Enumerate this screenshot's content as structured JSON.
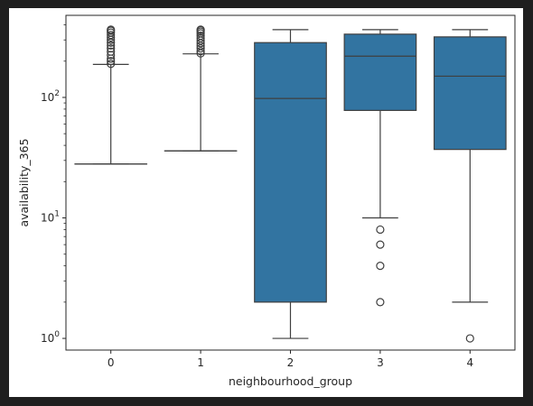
{
  "chart_data": {
    "type": "box",
    "title": "",
    "xlabel": "neighbourhood_group",
    "ylabel": "availability_365",
    "yscale": "log",
    "ylim": [
      0.8,
      480
    ],
    "yticks": [
      {
        "value": 1,
        "base": "10",
        "exp": "0"
      },
      {
        "value": 10,
        "base": "10",
        "exp": "1"
      },
      {
        "value": 100,
        "base": "10",
        "exp": "2"
      }
    ],
    "categories": [
      "0",
      "1",
      "2",
      "3",
      "4"
    ],
    "box_color": "#3274a1",
    "line_color": "#3f3f3f",
    "grid": false,
    "boxes": [
      {
        "category": "0",
        "q1": 28,
        "median": 28,
        "q3": 28,
        "whisker_low": 28,
        "whisker_high": 188,
        "outliers": [
          190,
          200,
          210,
          225,
          240,
          255,
          270,
          285,
          300,
          315,
          330,
          345,
          358,
          365
        ]
      },
      {
        "category": "1",
        "q1": 36,
        "median": 36,
        "q3": 36,
        "whisker_low": 36,
        "whisker_high": 230,
        "outliers": [
          232,
          242,
          255,
          268,
          282,
          296,
          310,
          325,
          340,
          352,
          362,
          365
        ]
      },
      {
        "category": "2",
        "q1": 2,
        "median": 98,
        "q3": 285,
        "whisker_low": 1,
        "whisker_high": 365,
        "outliers": []
      },
      {
        "category": "3",
        "q1": 78,
        "median": 220,
        "q3": 335,
        "whisker_low": 10,
        "whisker_high": 365,
        "outliers": [
          8,
          6,
          4,
          2
        ]
      },
      {
        "category": "4",
        "q1": 37,
        "median": 150,
        "q3": 318,
        "whisker_low": 2,
        "whisker_high": 365,
        "outliers": [
          1
        ]
      }
    ]
  }
}
